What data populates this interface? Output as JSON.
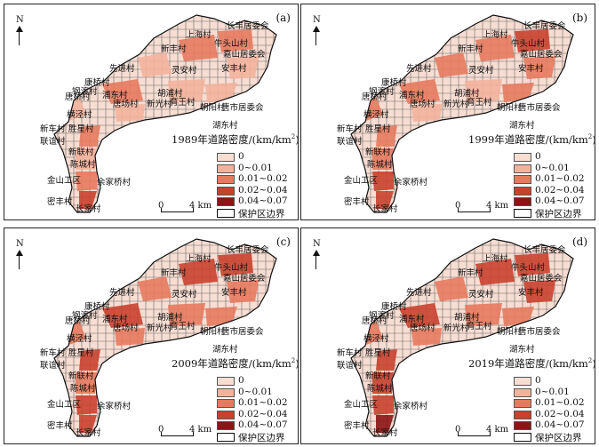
{
  "north_label": "N",
  "scale": {
    "zero": "0",
    "distance": "4 km"
  },
  "legend_items": [
    {
      "label": "0",
      "color": "#f7ddd2"
    },
    {
      "label": "0~0.01",
      "color": "#f2b29c"
    },
    {
      "label": "0.01~0.02",
      "color": "#e67a5e"
    },
    {
      "label": "0.02~0.04",
      "color": "#c8412d"
    },
    {
      "label": "0.04~0.07",
      "color": "#8b1414"
    },
    {
      "label": "保护区边界",
      "color": "#ffffff"
    }
  ],
  "place_names": [
    "长丰居委会",
    "上海村",
    "牛头山村",
    "新丰村",
    "嘉山居委会",
    "先进村",
    "安丰村",
    "灵安村",
    "康桥村",
    "钢渡村",
    "浦东村",
    "胡浦村",
    "唐桥村",
    "唐场村",
    "新光村",
    "育王村",
    "朝阳村",
    "唐市居委会",
    "横泾村",
    "湖东村",
    "新车村",
    "胜星村",
    "联谊村",
    "新联村",
    "陈城村",
    "金山工区",
    "余家桥村",
    "密丰村",
    "长家村"
  ],
  "panels": [
    {
      "label": "(a)",
      "title": "1989年道路密度/(km/km",
      "unit_sup": "2",
      "unit_close": ")"
    },
    {
      "label": "(b)",
      "title": "1999年道路密度/(km/km",
      "unit_sup": "2",
      "unit_close": ")"
    },
    {
      "label": "(c)",
      "title": "2009年道路密度/(km/km",
      "unit_sup": "2",
      "unit_close": ")"
    },
    {
      "label": "(d)",
      "title": "2019年道路密度/(km/km",
      "unit_sup": "2",
      "unit_close": ")"
    }
  ]
}
